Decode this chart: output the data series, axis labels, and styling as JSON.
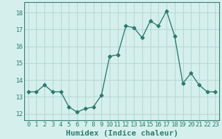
{
  "x": [
    0,
    1,
    2,
    3,
    4,
    5,
    6,
    7,
    8,
    9,
    10,
    11,
    12,
    13,
    14,
    15,
    16,
    17,
    18,
    19,
    20,
    21,
    22,
    23
  ],
  "y": [
    13.3,
    13.3,
    13.7,
    13.3,
    13.3,
    12.4,
    12.1,
    12.3,
    12.4,
    13.1,
    15.4,
    15.5,
    17.2,
    17.1,
    16.5,
    17.5,
    17.2,
    18.1,
    16.6,
    13.8,
    14.4,
    13.7,
    13.3,
    13.3
  ],
  "line_color": "#2d7b6f",
  "marker": "D",
  "marker_size": 2.5,
  "bg_color": "#d5f0ec",
  "grid_color": "#b8d8d4",
  "xlabel": "Humidex (Indice chaleur)",
  "ylabel": "",
  "title": "",
  "xlim": [
    -0.5,
    23.5
  ],
  "ylim": [
    11.6,
    18.6
  ],
  "yticks": [
    12,
    13,
    14,
    15,
    16,
    17,
    18
  ],
  "xticks": [
    0,
    1,
    2,
    3,
    4,
    5,
    6,
    7,
    8,
    9,
    10,
    11,
    12,
    13,
    14,
    15,
    16,
    17,
    18,
    19,
    20,
    21,
    22,
    23
  ],
  "tick_fontsize": 6.5,
  "xlabel_fontsize": 8,
  "tick_color": "#2d7b6f",
  "label_color": "#2d7b6f"
}
